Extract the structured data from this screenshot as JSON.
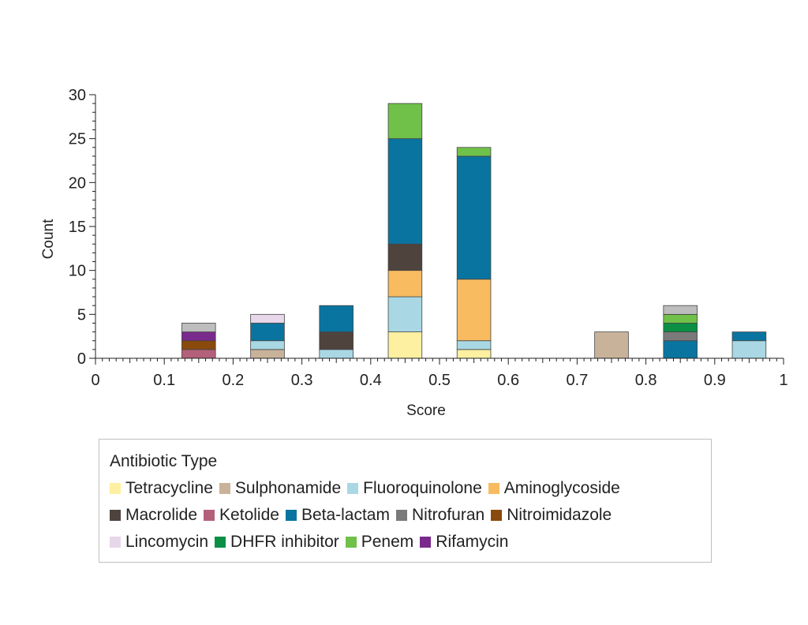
{
  "chart_data": {
    "type": "bar",
    "stacked": true,
    "title": "",
    "xlabel": "Score",
    "ylabel": "Count",
    "xlim": [
      0,
      1
    ],
    "ylim": [
      0,
      30
    ],
    "x_ticks": [
      "0",
      "0.1",
      "0.2",
      "0.3",
      "0.4",
      "0.5",
      "0.6",
      "0.7",
      "0.8",
      "0.9",
      "1"
    ],
    "y_ticks": [
      "0",
      "5",
      "10",
      "15",
      "20",
      "25",
      "30"
    ],
    "bin_width": 0.05,
    "bin_centers": [
      0.15,
      0.25,
      0.35,
      0.45,
      0.55,
      0.75,
      0.85,
      0.95
    ],
    "legend_title": "Antibiotic Type",
    "legend_position": "bottom",
    "grid": false,
    "series": [
      {
        "name": "Tetracycline",
        "color": "#fdf0a0",
        "values": [
          0,
          0,
          0,
          3,
          1,
          0,
          0,
          0
        ]
      },
      {
        "name": "Sulphonamide",
        "color": "#c8b39a",
        "values": [
          0,
          1,
          0,
          0,
          0,
          3,
          0,
          0
        ]
      },
      {
        "name": "Fluoroquinolone",
        "color": "#a9d8e4",
        "values": [
          0,
          1,
          1,
          4,
          1,
          0,
          0,
          2
        ]
      },
      {
        "name": "Aminoglycoside",
        "color": "#f8bb60",
        "values": [
          0,
          0,
          0,
          3,
          7,
          0,
          0,
          0
        ]
      },
      {
        "name": "Macrolide",
        "color": "#4e433d",
        "values": [
          0,
          0,
          2,
          3,
          0,
          0,
          0,
          0
        ]
      },
      {
        "name": "Ketolide",
        "color": "#b3607a",
        "values": [
          1,
          0,
          0,
          0,
          0,
          0,
          0,
          0
        ]
      },
      {
        "name": "Beta-lactam",
        "color": "#0a74a0",
        "values": [
          0,
          2,
          3,
          12,
          14,
          0,
          2,
          1
        ]
      },
      {
        "name": "Nitrofuran",
        "color": "#7a7a7a",
        "values": [
          0,
          0,
          0,
          0,
          0,
          0,
          1,
          0
        ]
      },
      {
        "name": "Nitroimidazole",
        "color": "#8a4a0c",
        "values": [
          1,
          0,
          0,
          0,
          0,
          0,
          0,
          0
        ]
      },
      {
        "name": "Lincomycin",
        "color": "#e8d6ea",
        "values": [
          0,
          1,
          0,
          0,
          0,
          0,
          0,
          0
        ]
      },
      {
        "name": "DHFR inhibitor",
        "color": "#0a8f45",
        "values": [
          0,
          0,
          0,
          0,
          0,
          0,
          1,
          0
        ]
      },
      {
        "name": "Penem",
        "color": "#70c14a",
        "values": [
          0,
          0,
          0,
          4,
          1,
          0,
          1,
          0
        ]
      },
      {
        "name": "Rifamycin",
        "color": "#7a2a8c",
        "values": [
          1,
          0,
          0,
          0,
          0,
          0,
          0,
          0
        ]
      },
      {
        "name": "",
        "color": "#bdbdbd",
        "values": [
          1,
          0,
          0,
          0,
          0,
          0,
          1,
          0
        ]
      }
    ]
  }
}
